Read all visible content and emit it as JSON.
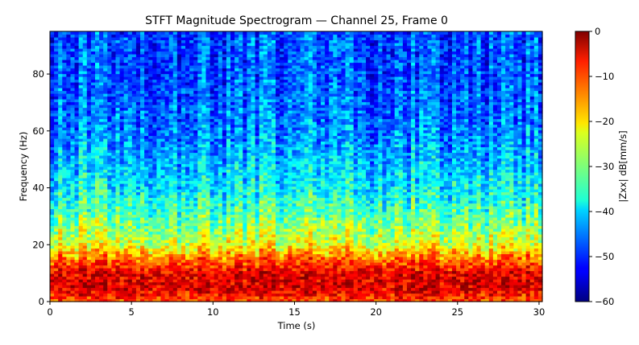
{
  "chart_data": {
    "type": "heatmap",
    "title": "STFT Magnitude Spectrogram — Channel 25, Frame 0",
    "xlabel": "Time (s)",
    "ylabel": "Frequency (Hz)",
    "xlim": [
      0,
      30.2
    ],
    "ylim": [
      0,
      95
    ],
    "xticks": [
      0,
      5,
      10,
      15,
      20,
      25,
      30
    ],
    "yticks": [
      0,
      20,
      40,
      60,
      80
    ],
    "colormap": "jet",
    "colorbar": {
      "label": "|Zxx| dB[mm/s]",
      "range": [
        -60,
        0
      ],
      "ticks": [
        0,
        -10,
        -20,
        -30,
        -40,
        -50,
        -60
      ]
    },
    "magnitude_profile_db": [
      {
        "frequency": 0,
        "db": -12
      },
      {
        "frequency": 5,
        "db": -5
      },
      {
        "frequency": 10,
        "db": -6
      },
      {
        "frequency": 15,
        "db": -14
      },
      {
        "frequency": 20,
        "db": -24
      },
      {
        "frequency": 30,
        "db": -32
      },
      {
        "frequency": 40,
        "db": -38
      },
      {
        "frequency": 60,
        "db": -45
      },
      {
        "frequency": 80,
        "db": -48
      },
      {
        "frequency": 95,
        "db": -48
      }
    ],
    "grid": false
  }
}
